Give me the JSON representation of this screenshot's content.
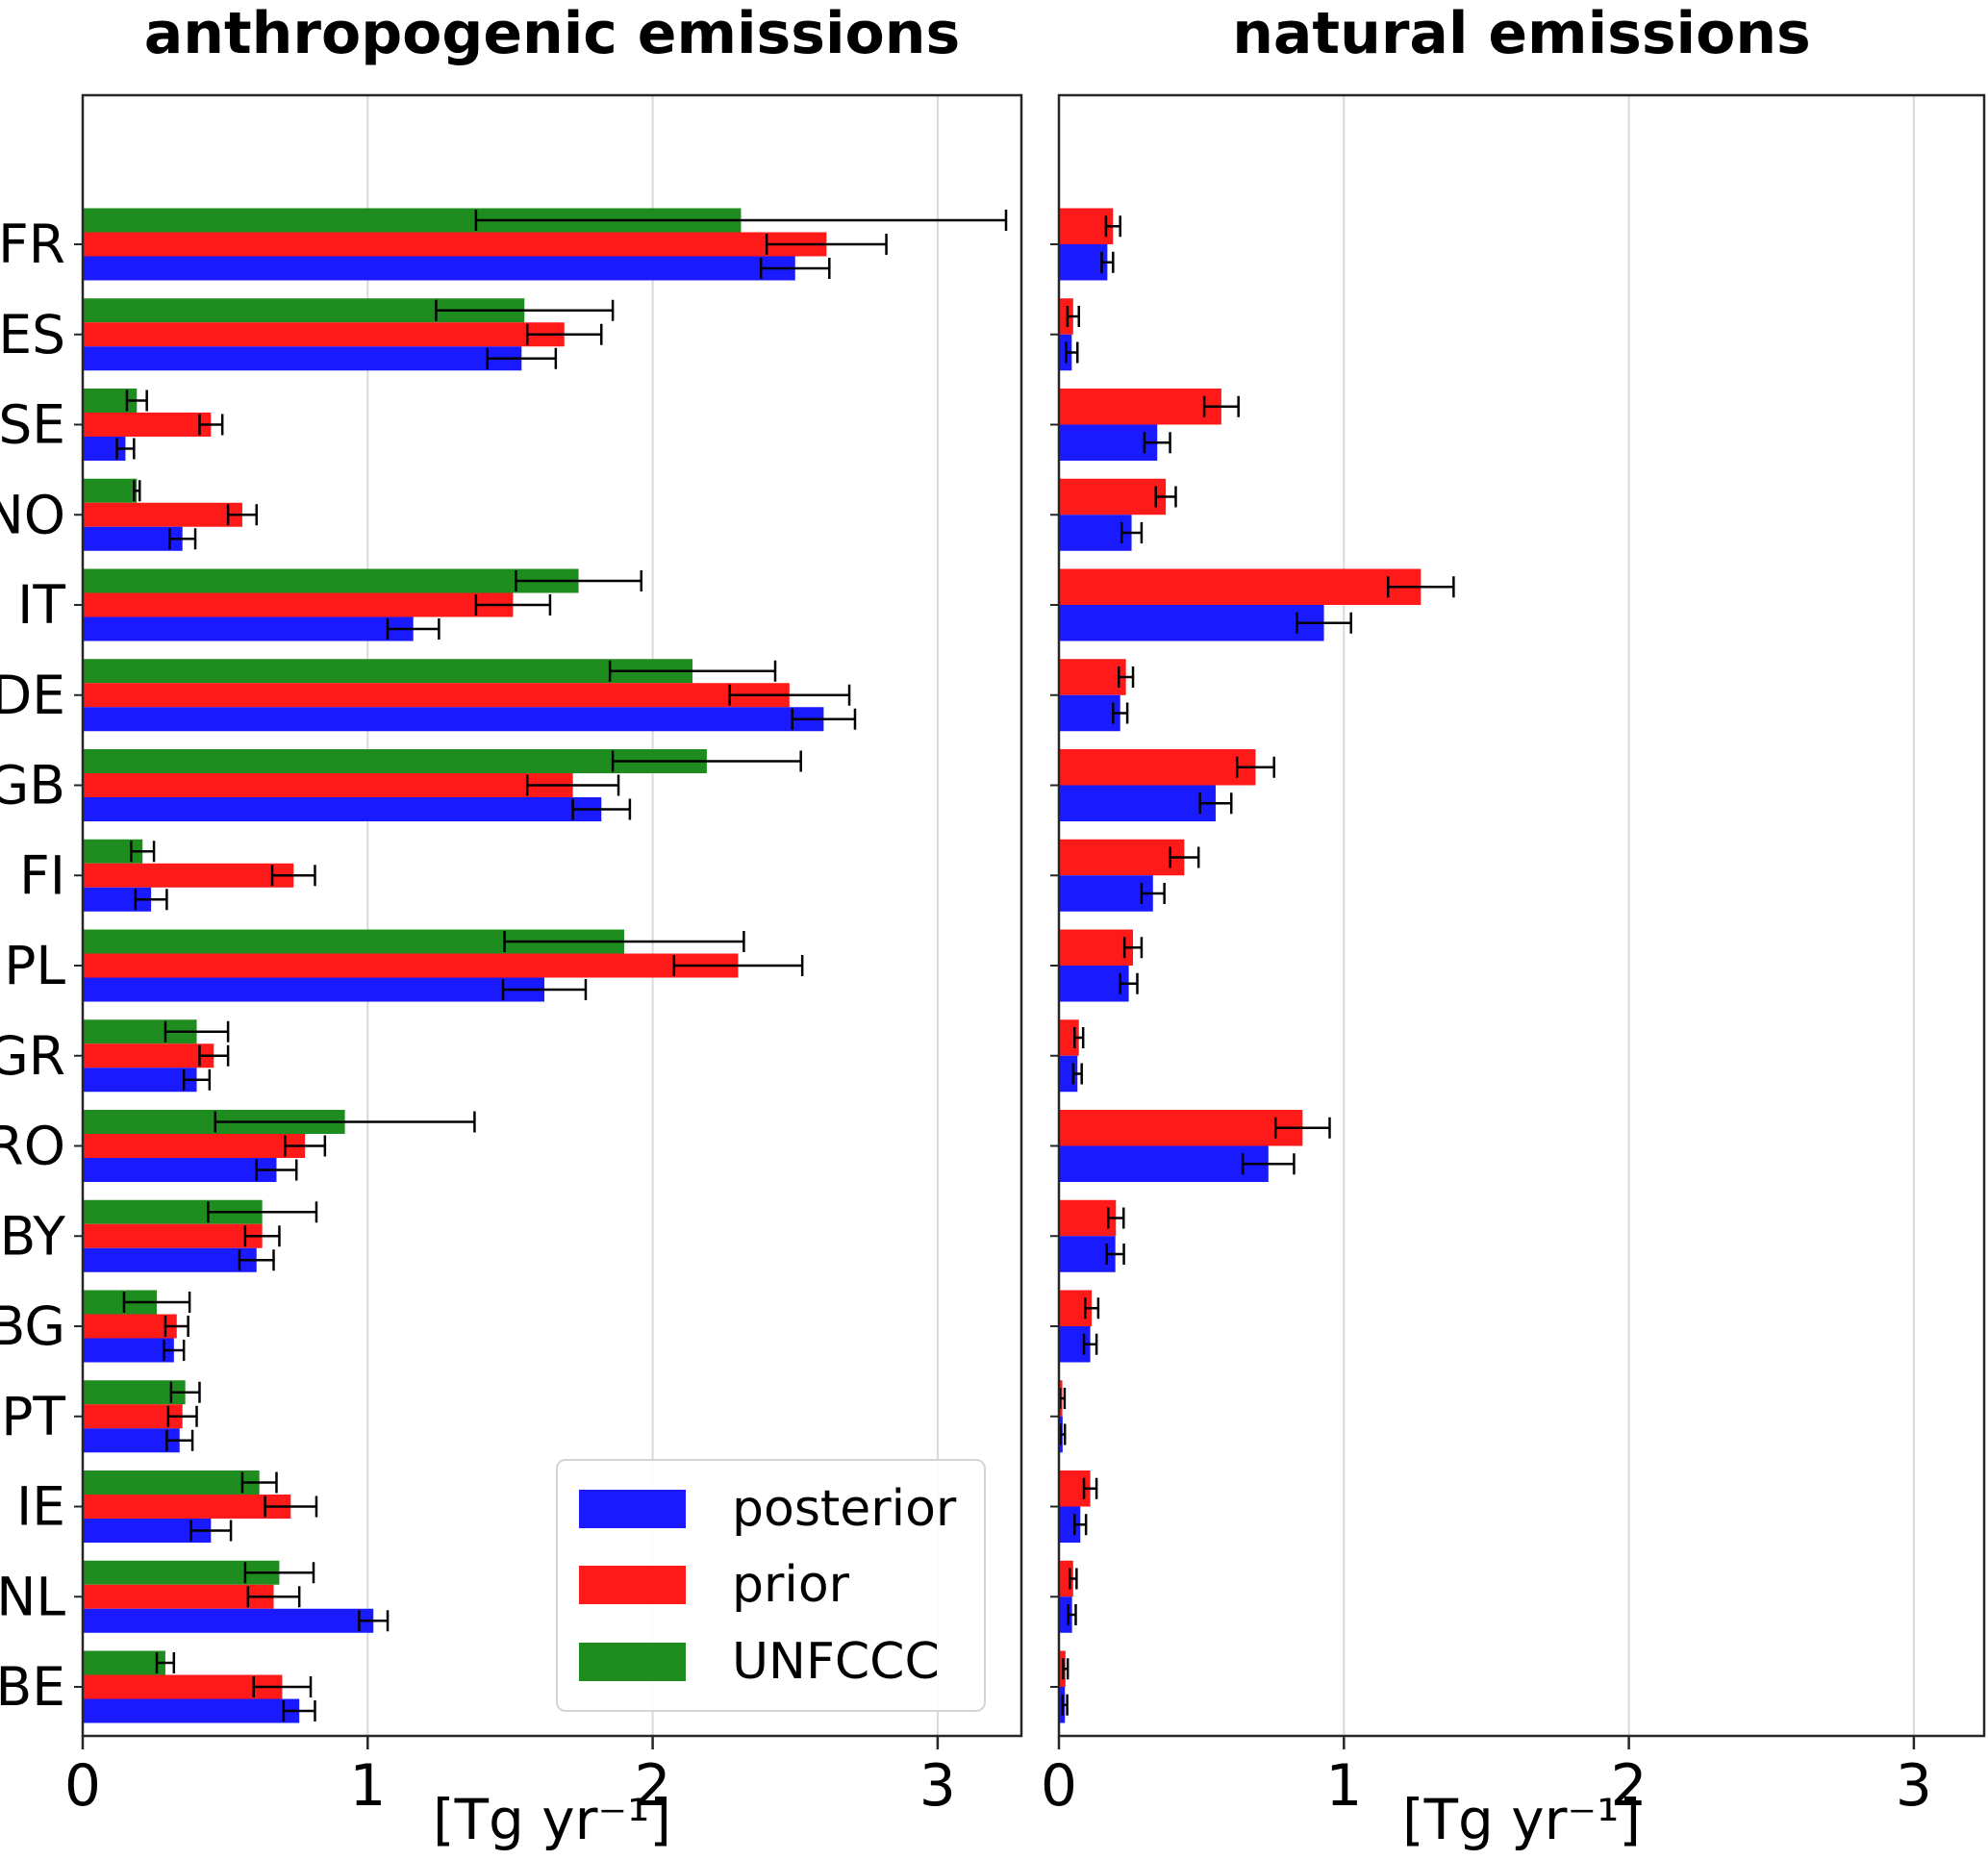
{
  "titles": {
    "left": "anthropogenic emissions",
    "right": "natural emissions"
  },
  "x_axis_label": "[Tg yr⁻¹]",
  "legend": {
    "items": [
      {
        "label": "posterior",
        "color": "#1a1aff"
      },
      {
        "label": "prior",
        "color": "#ff1a1a"
      },
      {
        "label": "UNFCCC",
        "color": "#1e8c1e"
      }
    ]
  },
  "chart_data": [
    {
      "type": "bar",
      "orientation": "horizontal",
      "title": "anthropogenic emissions",
      "xlabel": "[Tg yr⁻¹]",
      "xlim": [
        0,
        3.3
      ],
      "x_ticks": [
        0,
        1,
        2,
        3
      ],
      "grid": true,
      "legend_position": "lower right",
      "categories": [
        "FR",
        "ES",
        "SE",
        "NO",
        "IT",
        "DE",
        "GB",
        "FI",
        "PL",
        "GR",
        "RO",
        "BY",
        "BG",
        "PT",
        "IE",
        "NL",
        "BE"
      ],
      "series": [
        {
          "name": "posterior",
          "color": "#1a1aff",
          "values": [
            2.5,
            1.54,
            0.15,
            0.35,
            1.16,
            2.6,
            1.82,
            0.24,
            1.62,
            0.4,
            0.68,
            0.61,
            0.32,
            0.34,
            0.45,
            1.02,
            0.76
          ],
          "errors": [
            0.12,
            0.12,
            0.03,
            0.045,
            0.09,
            0.11,
            0.1,
            0.055,
            0.145,
            0.045,
            0.07,
            0.06,
            0.035,
            0.045,
            0.07,
            0.05,
            0.055
          ]
        },
        {
          "name": "prior",
          "color": "#ff1a1a",
          "values": [
            2.61,
            1.69,
            0.45,
            0.56,
            1.51,
            2.48,
            1.72,
            0.74,
            2.3,
            0.46,
            0.78,
            0.63,
            0.33,
            0.35,
            0.73,
            0.67,
            0.7
          ],
          "errors": [
            0.21,
            0.13,
            0.04,
            0.05,
            0.13,
            0.21,
            0.16,
            0.075,
            0.225,
            0.05,
            0.07,
            0.06,
            0.04,
            0.05,
            0.09,
            0.09,
            0.1
          ]
        },
        {
          "name": "UNFCCC",
          "color": "#1e8c1e",
          "values": [
            2.31,
            1.55,
            0.19,
            0.19,
            1.74,
            2.14,
            2.19,
            0.21,
            1.9,
            0.4,
            0.92,
            0.63,
            0.26,
            0.36,
            0.62,
            0.69,
            0.29
          ],
          "errors": [
            0.93,
            0.31,
            0.035,
            0.01,
            0.22,
            0.29,
            0.33,
            0.04,
            0.42,
            0.11,
            0.455,
            0.19,
            0.115,
            0.05,
            0.06,
            0.12,
            0.03
          ]
        }
      ]
    },
    {
      "type": "bar",
      "orientation": "horizontal",
      "title": "natural emissions",
      "xlabel": "[Tg yr⁻¹]",
      "xlim": [
        0,
        3.25
      ],
      "x_ticks": [
        0,
        1,
        2,
        3
      ],
      "grid": true,
      "categories": [
        "FR",
        "ES",
        "SE",
        "NO",
        "IT",
        "DE",
        "GB",
        "FI",
        "PL",
        "GR",
        "RO",
        "BY",
        "BG",
        "PT",
        "IE",
        "NL",
        "BE"
      ],
      "series": [
        {
          "name": "posterior",
          "color": "#1a1aff",
          "values": [
            0.17,
            0.045,
            0.345,
            0.255,
            0.93,
            0.215,
            0.55,
            0.33,
            0.245,
            0.065,
            0.735,
            0.198,
            0.11,
            0.013,
            0.075,
            0.046,
            0.021
          ],
          "errors": [
            0.02,
            0.02,
            0.045,
            0.035,
            0.095,
            0.025,
            0.055,
            0.04,
            0.03,
            0.015,
            0.09,
            0.03,
            0.022,
            0.008,
            0.02,
            0.013,
            0.008
          ]
        },
        {
          "name": "prior",
          "color": "#ff1a1a",
          "values": [
            0.19,
            0.05,
            0.57,
            0.375,
            1.27,
            0.235,
            0.69,
            0.44,
            0.26,
            0.07,
            0.855,
            0.2,
            0.115,
            0.012,
            0.11,
            0.05,
            0.023
          ],
          "errors": [
            0.025,
            0.02,
            0.06,
            0.035,
            0.115,
            0.025,
            0.065,
            0.05,
            0.03,
            0.015,
            0.095,
            0.027,
            0.023,
            0.008,
            0.022,
            0.012,
            0.008
          ]
        }
      ]
    }
  ]
}
